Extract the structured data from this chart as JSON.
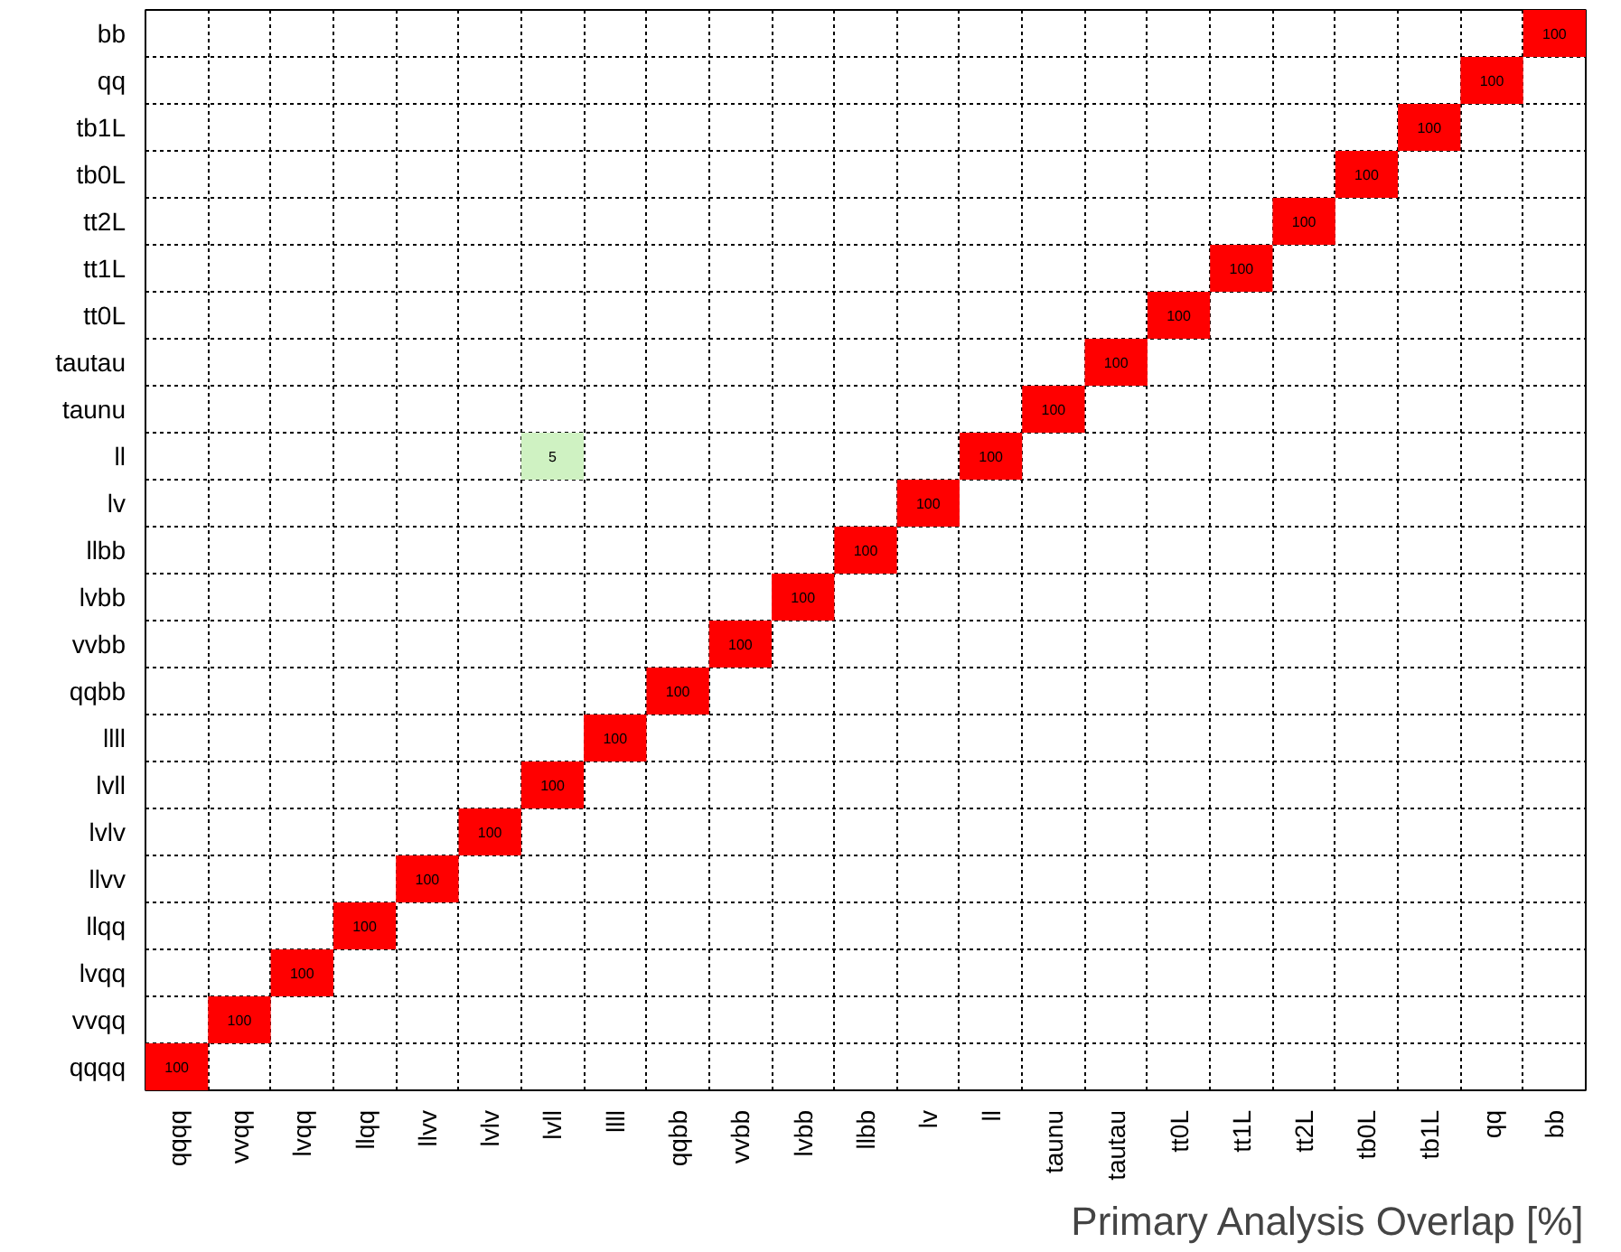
{
  "chart_data": {
    "type": "heatmap",
    "xlabel": "Primary Analysis Overlap [%]",
    "categories": [
      "qqqq",
      "vvqq",
      "lvqq",
      "llqq",
      "llvv",
      "lvlv",
      "lvll",
      "llll",
      "qqbb",
      "vvbb",
      "lvbb",
      "llbb",
      "lv",
      "ll",
      "taunu",
      "tautau",
      "tt0L",
      "tt1L",
      "tt2L",
      "tb0L",
      "tb1L",
      "qq",
      "bb"
    ],
    "y_categories": [
      "bb",
      "qq",
      "tb1L",
      "tb0L",
      "tt2L",
      "tt1L",
      "tt0L",
      "tautau",
      "taunu",
      "ll",
      "lv",
      "llbb",
      "lvbb",
      "vvbb",
      "qqbb",
      "llll",
      "lvll",
      "lvlv",
      "llvv",
      "llqq",
      "lvqq",
      "vvqq",
      "qqqq"
    ],
    "cells": [
      [
        null,
        null,
        null,
        null,
        null,
        null,
        null,
        null,
        null,
        null,
        null,
        null,
        null,
        null,
        null,
        null,
        null,
        null,
        null,
        null,
        null,
        null,
        100
      ],
      [
        null,
        null,
        null,
        null,
        null,
        null,
        null,
        null,
        null,
        null,
        null,
        null,
        null,
        null,
        null,
        null,
        null,
        null,
        null,
        null,
        null,
        100,
        null
      ],
      [
        null,
        null,
        null,
        null,
        null,
        null,
        null,
        null,
        null,
        null,
        null,
        null,
        null,
        null,
        null,
        null,
        null,
        null,
        null,
        null,
        100,
        null,
        null
      ],
      [
        null,
        null,
        null,
        null,
        null,
        null,
        null,
        null,
        null,
        null,
        null,
        null,
        null,
        null,
        null,
        null,
        null,
        null,
        null,
        100,
        null,
        null,
        null
      ],
      [
        null,
        null,
        null,
        null,
        null,
        null,
        null,
        null,
        null,
        null,
        null,
        null,
        null,
        null,
        null,
        null,
        null,
        null,
        100,
        null,
        null,
        null,
        null
      ],
      [
        null,
        null,
        null,
        null,
        null,
        null,
        null,
        null,
        null,
        null,
        null,
        null,
        null,
        null,
        null,
        null,
        null,
        100,
        null,
        null,
        null,
        null,
        null
      ],
      [
        null,
        null,
        null,
        null,
        null,
        null,
        null,
        null,
        null,
        null,
        null,
        null,
        null,
        null,
        null,
        null,
        100,
        null,
        null,
        null,
        null,
        null,
        null
      ],
      [
        null,
        null,
        null,
        null,
        null,
        null,
        null,
        null,
        null,
        null,
        null,
        null,
        null,
        null,
        null,
        100,
        null,
        null,
        null,
        null,
        null,
        null,
        null
      ],
      [
        null,
        null,
        null,
        null,
        null,
        null,
        null,
        null,
        null,
        null,
        null,
        null,
        null,
        null,
        100,
        null,
        null,
        null,
        null,
        null,
        null,
        null,
        null
      ],
      [
        null,
        null,
        null,
        null,
        null,
        null,
        5,
        null,
        null,
        null,
        null,
        null,
        null,
        100,
        null,
        null,
        null,
        null,
        null,
        null,
        null,
        null,
        null
      ],
      [
        null,
        null,
        null,
        null,
        null,
        null,
        null,
        null,
        null,
        null,
        null,
        null,
        100,
        null,
        null,
        null,
        null,
        null,
        null,
        null,
        null,
        null,
        null
      ],
      [
        null,
        null,
        null,
        null,
        null,
        null,
        null,
        null,
        null,
        null,
        null,
        100,
        null,
        null,
        null,
        null,
        null,
        null,
        null,
        null,
        null,
        null,
        null
      ],
      [
        null,
        null,
        null,
        null,
        null,
        null,
        null,
        null,
        null,
        null,
        100,
        null,
        null,
        null,
        null,
        null,
        null,
        null,
        null,
        null,
        null,
        null,
        null
      ],
      [
        null,
        null,
        null,
        null,
        null,
        null,
        null,
        null,
        null,
        100,
        null,
        null,
        null,
        null,
        null,
        null,
        null,
        null,
        null,
        null,
        null,
        null,
        null
      ],
      [
        null,
        null,
        null,
        null,
        null,
        null,
        null,
        null,
        100,
        null,
        null,
        null,
        null,
        null,
        null,
        null,
        null,
        null,
        null,
        null,
        null,
        null,
        null
      ],
      [
        null,
        null,
        null,
        null,
        null,
        null,
        null,
        100,
        null,
        null,
        null,
        null,
        null,
        null,
        null,
        null,
        null,
        null,
        null,
        null,
        null,
        null,
        null
      ],
      [
        null,
        null,
        null,
        null,
        null,
        null,
        100,
        null,
        null,
        null,
        null,
        null,
        null,
        null,
        null,
        null,
        null,
        null,
        null,
        null,
        null,
        null,
        null
      ],
      [
        null,
        null,
        null,
        null,
        null,
        100,
        null,
        null,
        null,
        null,
        null,
        null,
        null,
        null,
        null,
        null,
        null,
        null,
        null,
        null,
        null,
        null,
        null
      ],
      [
        null,
        null,
        null,
        null,
        100,
        null,
        null,
        null,
        null,
        null,
        null,
        null,
        null,
        null,
        null,
        null,
        null,
        null,
        null,
        null,
        null,
        null,
        null
      ],
      [
        null,
        null,
        null,
        100,
        null,
        null,
        null,
        null,
        null,
        null,
        null,
        null,
        null,
        null,
        null,
        null,
        null,
        null,
        null,
        null,
        null,
        null,
        null
      ],
      [
        null,
        null,
        100,
        null,
        null,
        null,
        null,
        null,
        null,
        null,
        null,
        null,
        null,
        null,
        null,
        null,
        null,
        null,
        null,
        null,
        null,
        null,
        null
      ],
      [
        null,
        100,
        null,
        null,
        null,
        null,
        null,
        null,
        null,
        null,
        null,
        null,
        null,
        null,
        null,
        null,
        null,
        null,
        null,
        null,
        null,
        null,
        null
      ],
      [
        100,
        null,
        null,
        null,
        null,
        null,
        null,
        null,
        null,
        null,
        null,
        null,
        null,
        null,
        null,
        null,
        null,
        null,
        null,
        null,
        null,
        null,
        null
      ]
    ],
    "data_labels": true,
    "grid": true
  }
}
